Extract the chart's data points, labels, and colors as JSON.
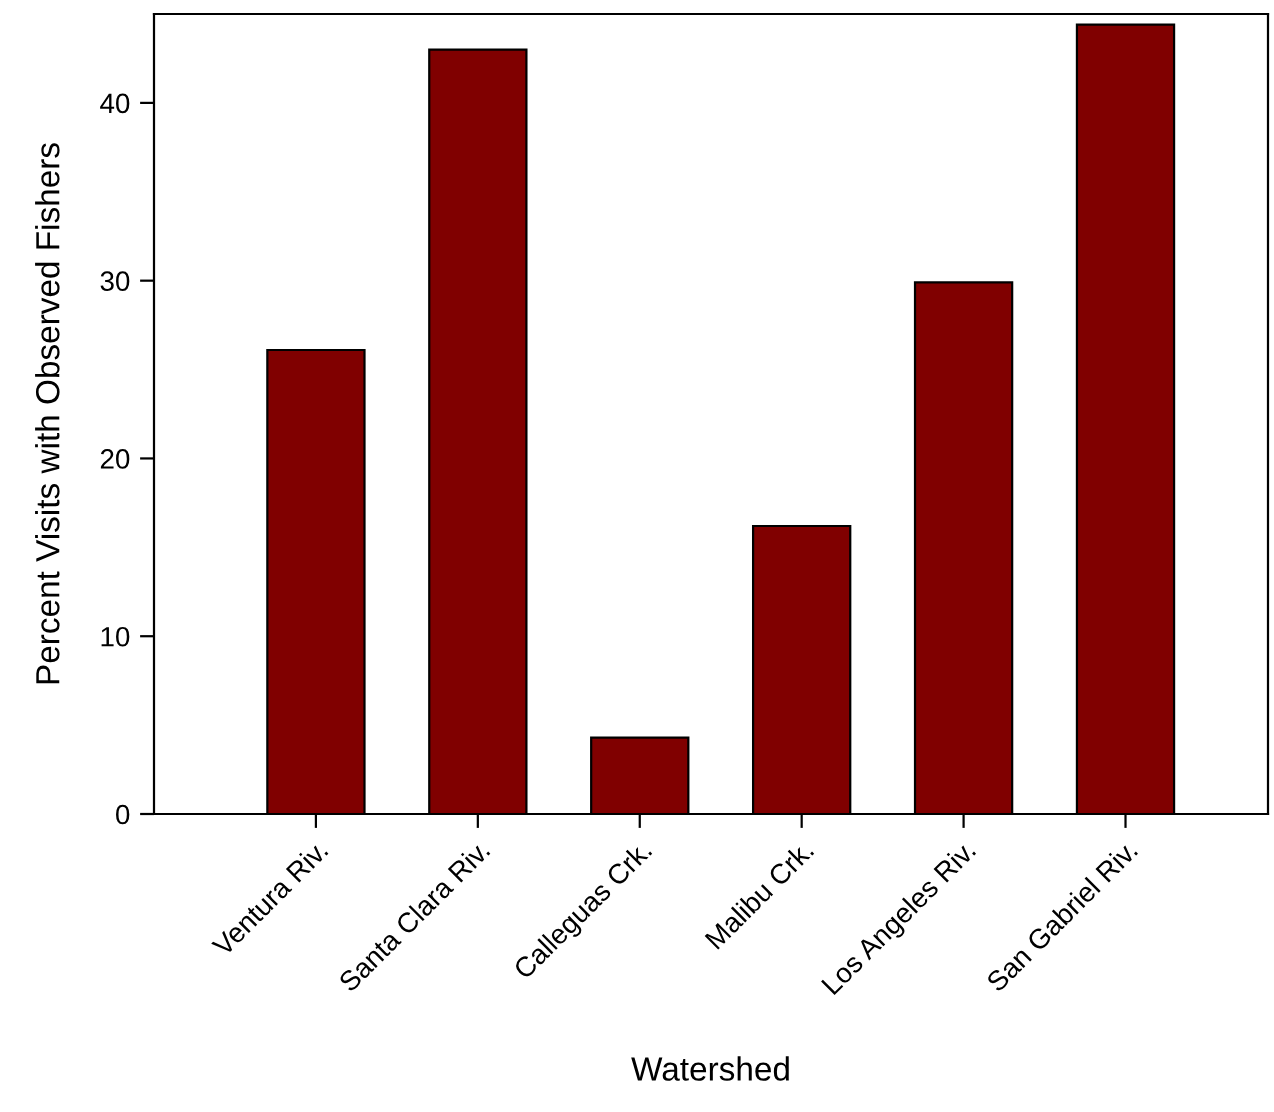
{
  "chart_data": {
    "type": "bar",
    "xlabel": "Watershed",
    "ylabel": "Percent Visits with Observed Fishers",
    "categories": [
      "Ventura Riv.",
      "Santa Clara Riv.",
      "Calleguas Crk.",
      "Malibu Crk.",
      "Los Angeles Riv.",
      "San Gabriel Riv."
    ],
    "values": [
      26.1,
      43.0,
      4.3,
      16.2,
      29.9,
      44.4
    ],
    "color": "#800000",
    "ylim": [
      0,
      45
    ],
    "yticks": [
      0,
      10,
      20,
      30,
      40
    ],
    "grid": false
  }
}
